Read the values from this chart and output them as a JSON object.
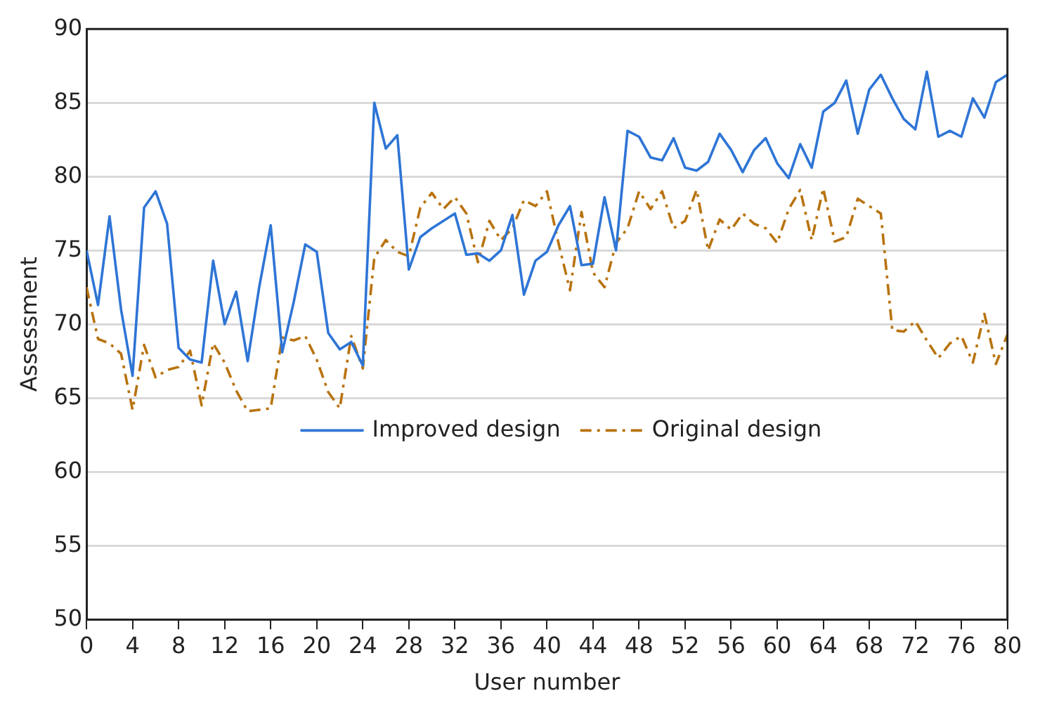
{
  "chart_data": {
    "type": "line",
    "xlabel": "User number",
    "ylabel": "Assessment",
    "x": [
      0,
      1,
      2,
      3,
      4,
      5,
      6,
      7,
      8,
      9,
      10,
      11,
      12,
      13,
      14,
      15,
      16,
      17,
      18,
      19,
      20,
      21,
      22,
      23,
      24,
      25,
      26,
      27,
      28,
      29,
      30,
      31,
      32,
      33,
      34,
      35,
      36,
      37,
      38,
      39,
      40,
      41,
      42,
      43,
      44,
      45,
      46,
      47,
      48,
      49,
      50,
      51,
      52,
      53,
      54,
      55,
      56,
      57,
      58,
      59,
      60,
      61,
      62,
      63,
      64,
      65,
      66,
      67,
      68,
      69,
      70,
      71,
      72,
      73,
      74,
      75,
      76,
      77,
      78,
      79,
      80
    ],
    "series": [
      {
        "name": "Improved design",
        "color": "#2e75d6",
        "line_style": "solid",
        "values": [
          75,
          71.3,
          77.3,
          71,
          66.5,
          77.9,
          79,
          76.8,
          68.4,
          67.6,
          67.4,
          74.3,
          70,
          72.2,
          67.5,
          72.5,
          76.7,
          68.1,
          71.5,
          75.4,
          74.9,
          69.4,
          68.3,
          68.8,
          67.2,
          85,
          81.9,
          82.8,
          73.7,
          75.9,
          76.5,
          77,
          77.5,
          74.7,
          74.8,
          74.3,
          75,
          77.4,
          72,
          74.3,
          74.9,
          76.7,
          78,
          74,
          74.1,
          78.6,
          75,
          83.1,
          82.7,
          81.3,
          81.1,
          82.6,
          80.6,
          80.4,
          81,
          82.9,
          81.8,
          80.3,
          81.8,
          82.6,
          80.9,
          79.9,
          82.2,
          80.6,
          84.4,
          85,
          86.5,
          82.9,
          85.9,
          86.9,
          85.3,
          83.9,
          83.2,
          87.1,
          82.7,
          83.1,
          82.7,
          85.3,
          84,
          86.4,
          86.9
        ]
      },
      {
        "name": "Original design",
        "color": "#b8730f",
        "line_style": "dashed",
        "values": [
          72.5,
          69,
          68.7,
          68,
          64.2,
          68.6,
          66.4,
          66.9,
          67.1,
          68.2,
          64.5,
          68.7,
          67.4,
          65.5,
          64.1,
          64.2,
          64.3,
          69.1,
          68.9,
          69.2,
          67.6,
          65.4,
          64.3,
          69.2,
          67,
          74.5,
          75.7,
          74.9,
          74.6,
          77.9,
          78.9,
          77.8,
          78.6,
          77.5,
          74.2,
          77,
          75.7,
          76.5,
          78.4,
          78,
          79,
          75.5,
          72.3,
          77.6,
          73.5,
          72.5,
          75.5,
          76.5,
          79,
          77.8,
          79,
          76.5,
          77,
          79.1,
          75,
          77.1,
          76.4,
          77.5,
          76.8,
          76.5,
          75.5,
          77.8,
          79.1,
          75.7,
          79.2,
          75.6,
          75.9,
          78.5,
          78,
          77.5,
          69.6,
          69.5,
          70.2,
          68.9,
          67.7,
          68.7,
          69.2,
          67.4,
          70.7,
          67.3,
          69.3
        ]
      }
    ],
    "xlim": [
      0,
      80
    ],
    "xticks": [
      0,
      4,
      8,
      12,
      16,
      20,
      24,
      28,
      32,
      36,
      40,
      44,
      48,
      52,
      56,
      60,
      64,
      68,
      72,
      76,
      80
    ],
    "ylim": [
      50,
      90
    ],
    "yticks": [
      50,
      55,
      60,
      65,
      70,
      75,
      80,
      85,
      90
    ],
    "grid": "y",
    "legend": "bottom",
    "marker": "none"
  }
}
